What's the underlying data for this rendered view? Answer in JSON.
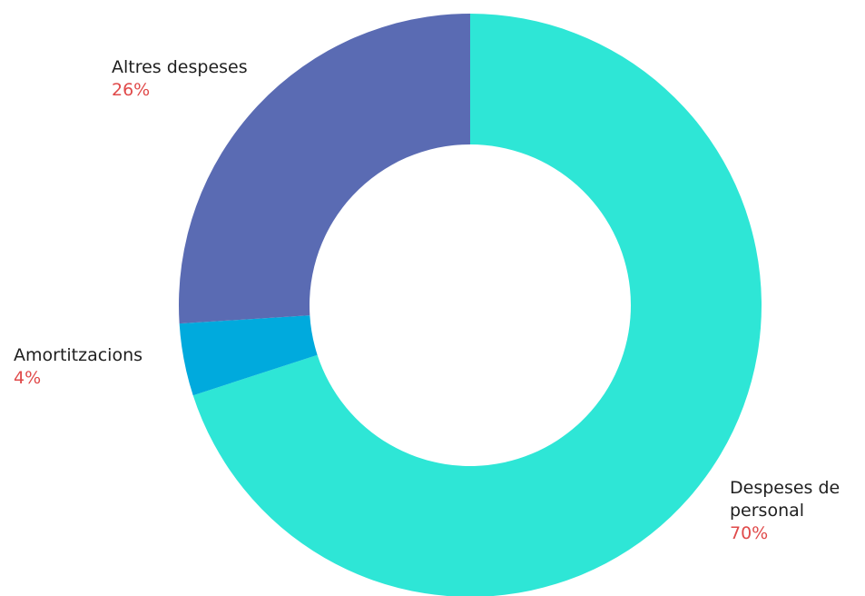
{
  "chart_data": {
    "type": "pie",
    "donut": true,
    "slices": [
      {
        "label": [
          "Despeses de",
          "personal"
        ],
        "value": 70,
        "value_label": "70%",
        "color": "#2ee6d6"
      },
      {
        "label": [
          "Amortitzacions"
        ],
        "value": 4,
        "value_label": "4%",
        "color": "#00aadd"
      },
      {
        "label": [
          "Altres despeses"
        ],
        "value": 26,
        "value_label": "26%",
        "color": "#5a6bb3"
      }
    ],
    "start_angle": "12 o'clock",
    "direction": "clockwise",
    "value_label_color": "#e04a4a",
    "legend": "none"
  }
}
